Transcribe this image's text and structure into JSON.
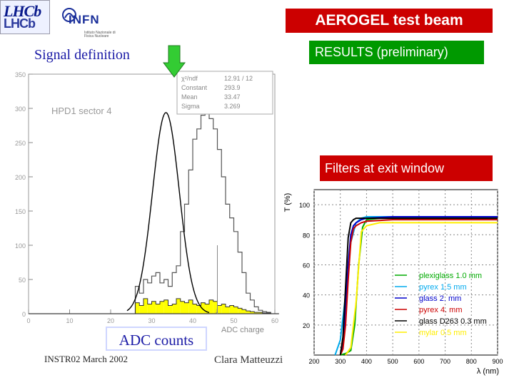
{
  "logos": {
    "lhcb_top": "LHCb",
    "lhcb_bottom": "LHCb",
    "infn": "INFN",
    "infn_subtitle": "Istituto Nazionale di Fisica Nucleare"
  },
  "title": "AEROGEL  test beam",
  "results_label": "RESULTS  (preliminary)",
  "signal_definition": "Signal definition",
  "filters_label": "Filters at exit window",
  "adc_counts_label": "ADC counts",
  "footer": {
    "left": "INSTR02  March 2002",
    "center": "Clara Matteuzzi"
  },
  "colors": {
    "title_bg": "#cc0000",
    "results_bg": "#009900",
    "arrow": "#33cc33",
    "text_blue": "#1a1aa6",
    "yellow_fill": "#ffff00"
  },
  "chart_data": [
    {
      "type": "bar",
      "title": "HPD1 sector 4",
      "xlabel": "ADC charge",
      "xlim": [
        0,
        60
      ],
      "ylim": [
        0,
        350
      ],
      "xticks": [
        "0",
        "10",
        "20",
        "30",
        "40",
        "50",
        "60"
      ],
      "yticks": [
        "0",
        "50",
        "100",
        "150",
        "200",
        "250",
        "300",
        "350"
      ],
      "stats_box": [
        {
          "label": "χ²/ndf",
          "value": "12.91   /   12"
        },
        {
          "label": "Constant",
          "value": "293.9"
        },
        {
          "label": "Mean",
          "value": "33.47"
        },
        {
          "label": "Sigma",
          "value": "3.269"
        }
      ],
      "series": [
        {
          "values": [
            0,
            0,
            0,
            0,
            0,
            0,
            0,
            0,
            0,
            0,
            0,
            0,
            0,
            0,
            0,
            0,
            0,
            0,
            0,
            0,
            0,
            0,
            0,
            0,
            0,
            0,
            40,
            30,
            50,
            45,
            55,
            60,
            45,
            50,
            40,
            60,
            70,
            120,
            160,
            210,
            255,
            270,
            290,
            295,
            285,
            270,
            240,
            200,
            160,
            140,
            120,
            90,
            60,
            30,
            20,
            10,
            5,
            3,
            2,
            0,
            0
          ]
        },
        {
          "values": [
            0,
            0,
            0,
            0,
            0,
            0,
            0,
            0,
            0,
            0,
            0,
            0,
            0,
            0,
            0,
            0,
            0,
            0,
            0,
            0,
            0,
            0,
            0,
            0,
            0,
            0,
            16,
            12,
            22,
            14,
            18,
            14,
            18,
            20,
            12,
            14,
            22,
            18,
            16,
            20,
            14,
            12,
            16,
            14,
            20,
            18,
            12,
            14,
            10,
            12,
            10,
            8,
            6,
            4,
            3,
            2,
            2,
            1,
            1,
            0,
            0
          ]
        }
      ],
      "fit_curve": {
        "constant": 293.9,
        "mean": 33.47,
        "sigma": 3.269
      }
    },
    {
      "type": "line",
      "xlabel": "λ (nm)",
      "ylabel": "T (%)",
      "xlim": [
        200,
        900
      ],
      "ylim": [
        0,
        110
      ],
      "xticks": [
        "200",
        "300",
        "400",
        "500",
        "600",
        "700",
        "800",
        "900"
      ],
      "yticks": [
        "20",
        "40",
        "60",
        "80",
        "100"
      ],
      "series": [
        {
          "name": "plexiglass 1.0 mm",
          "color": "#00aa00",
          "x": [
            300,
            320,
            340,
            355,
            370,
            385,
            400,
            450,
            500,
            600,
            700,
            800,
            900
          ],
          "y": [
            0,
            1,
            3,
            20,
            60,
            85,
            90,
            91,
            91,
            91,
            91,
            91,
            91
          ]
        },
        {
          "name": "pyrex 1.5 mm",
          "color": "#00aaee",
          "x": [
            280,
            300,
            320,
            340,
            360,
            380,
            400,
            500,
            600,
            700,
            800,
            900
          ],
          "y": [
            0,
            10,
            40,
            75,
            88,
            91,
            92,
            92,
            92,
            92,
            92,
            92
          ]
        },
        {
          "name": "glass 2. mm",
          "color": "#0000cc",
          "x": [
            300,
            310,
            320,
            330,
            340,
            350,
            360,
            380,
            400,
            500,
            600,
            700,
            800,
            900
          ],
          "y": [
            0,
            8,
            30,
            60,
            80,
            86,
            88,
            90,
            91,
            92,
            92,
            92,
            92,
            92
          ]
        },
        {
          "name": "pyrex 4. mm",
          "color": "#cc0000",
          "x": [
            300,
            310,
            320,
            330,
            340,
            350,
            360,
            380,
            400,
            500,
            600,
            700,
            800,
            900
          ],
          "y": [
            0,
            4,
            20,
            50,
            75,
            84,
            86,
            88,
            89,
            90,
            90,
            90,
            90,
            90
          ]
        },
        {
          "name": "glass D263 0.3 mm",
          "color": "#000000",
          "x": [
            300,
            310,
            320,
            330,
            340,
            350,
            360,
            380,
            400,
            500,
            600,
            700,
            800,
            900
          ],
          "y": [
            0,
            12,
            45,
            78,
            88,
            90,
            91,
            91,
            91,
            91,
            91,
            91,
            91,
            91
          ]
        },
        {
          "name": "mylar 0.5 mm",
          "color": "#ffee00",
          "x": [
            320,
            340,
            360,
            380,
            400,
            450,
            500,
            600,
            700,
            800,
            900
          ],
          "y": [
            0,
            5,
            35,
            82,
            86,
            88,
            88,
            88,
            88,
            88,
            88
          ]
        }
      ]
    }
  ]
}
